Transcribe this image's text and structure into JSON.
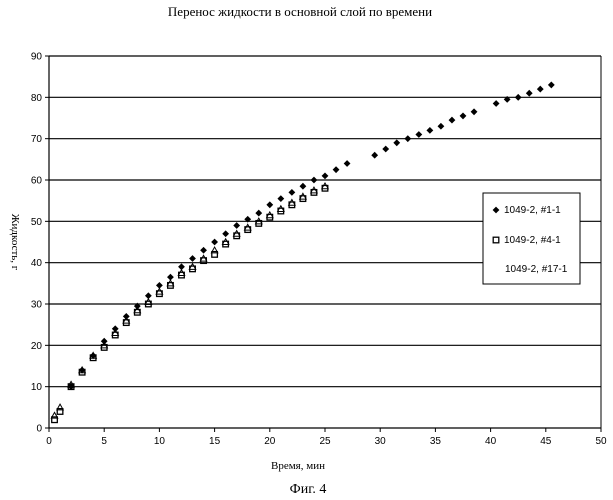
{
  "chart_data": {
    "type": "scatter",
    "title": "Перенос жидкости в основной слой по времени",
    "xlabel": "Время, мин",
    "ylabel": "Жидкость, г",
    "caption": "Фиг. 4",
    "xlim": [
      0,
      50
    ],
    "ylim": [
      0,
      90
    ],
    "xticks": [
      "0",
      "5",
      "10",
      "15",
      "20",
      "25",
      "30",
      "35",
      "40",
      "45",
      "50"
    ],
    "yticks": [
      "0",
      "10",
      "20",
      "30",
      "40",
      "50",
      "60",
      "70",
      "80",
      "90"
    ],
    "grid": "horizontal",
    "legend_position": "right",
    "series": [
      {
        "name": "1049-2, #1-1",
        "marker": "diamond",
        "x": [
          2,
          3,
          4,
          5,
          6,
          7,
          8,
          9,
          10,
          11,
          12,
          13,
          14,
          15,
          16,
          17,
          18,
          19,
          20,
          21,
          22,
          23,
          24,
          25,
          26,
          27,
          29.5,
          30.5,
          31.5,
          32.5,
          33.5,
          34.5,
          35.5,
          36.5,
          37.5,
          38.5,
          40.5,
          41.5,
          42.5,
          43.5,
          44.5,
          45.5
        ],
        "y": [
          10,
          14,
          17.5,
          21,
          24,
          27,
          29.5,
          32,
          34.5,
          36.5,
          39,
          41,
          43,
          45,
          47,
          49,
          50.5,
          52,
          54,
          55.5,
          57,
          58.5,
          60,
          61,
          62.5,
          64,
          66,
          67.5,
          69,
          70,
          71,
          72,
          73,
          74.5,
          75.5,
          76.5,
          78.5,
          79.5,
          80,
          81,
          82,
          83
        ]
      },
      {
        "name": "1049-2, #4-1",
        "marker": "square",
        "x": [
          0.5,
          1,
          2,
          3,
          4,
          5,
          6,
          7,
          8,
          9,
          10,
          11,
          12,
          13,
          14,
          15,
          16,
          17,
          18,
          19,
          20,
          21,
          22,
          23,
          24,
          25
        ],
        "y": [
          2,
          4,
          10,
          13.5,
          17,
          19.5,
          22.5,
          25.5,
          28,
          30,
          32.5,
          34.5,
          37,
          38.5,
          40.5,
          42,
          44.5,
          46.5,
          48,
          49.5,
          51,
          52.5,
          54,
          55.5,
          57,
          58
        ]
      },
      {
        "name": "1049-2, #17-1",
        "marker": "triangle",
        "x": [
          0.5,
          1,
          2,
          3,
          4,
          5,
          6,
          7,
          8,
          9,
          10,
          11,
          12,
          13,
          14,
          15,
          16,
          17,
          18,
          19,
          20,
          21,
          22,
          23,
          24,
          25
        ],
        "y": [
          3,
          5,
          10.5,
          14,
          17.5,
          20,
          23,
          26,
          28.5,
          30.5,
          33,
          35,
          37.5,
          39,
          41,
          43,
          45,
          47,
          48.5,
          50,
          51.5,
          53,
          54.5,
          56,
          57.5,
          58.5
        ]
      }
    ]
  }
}
